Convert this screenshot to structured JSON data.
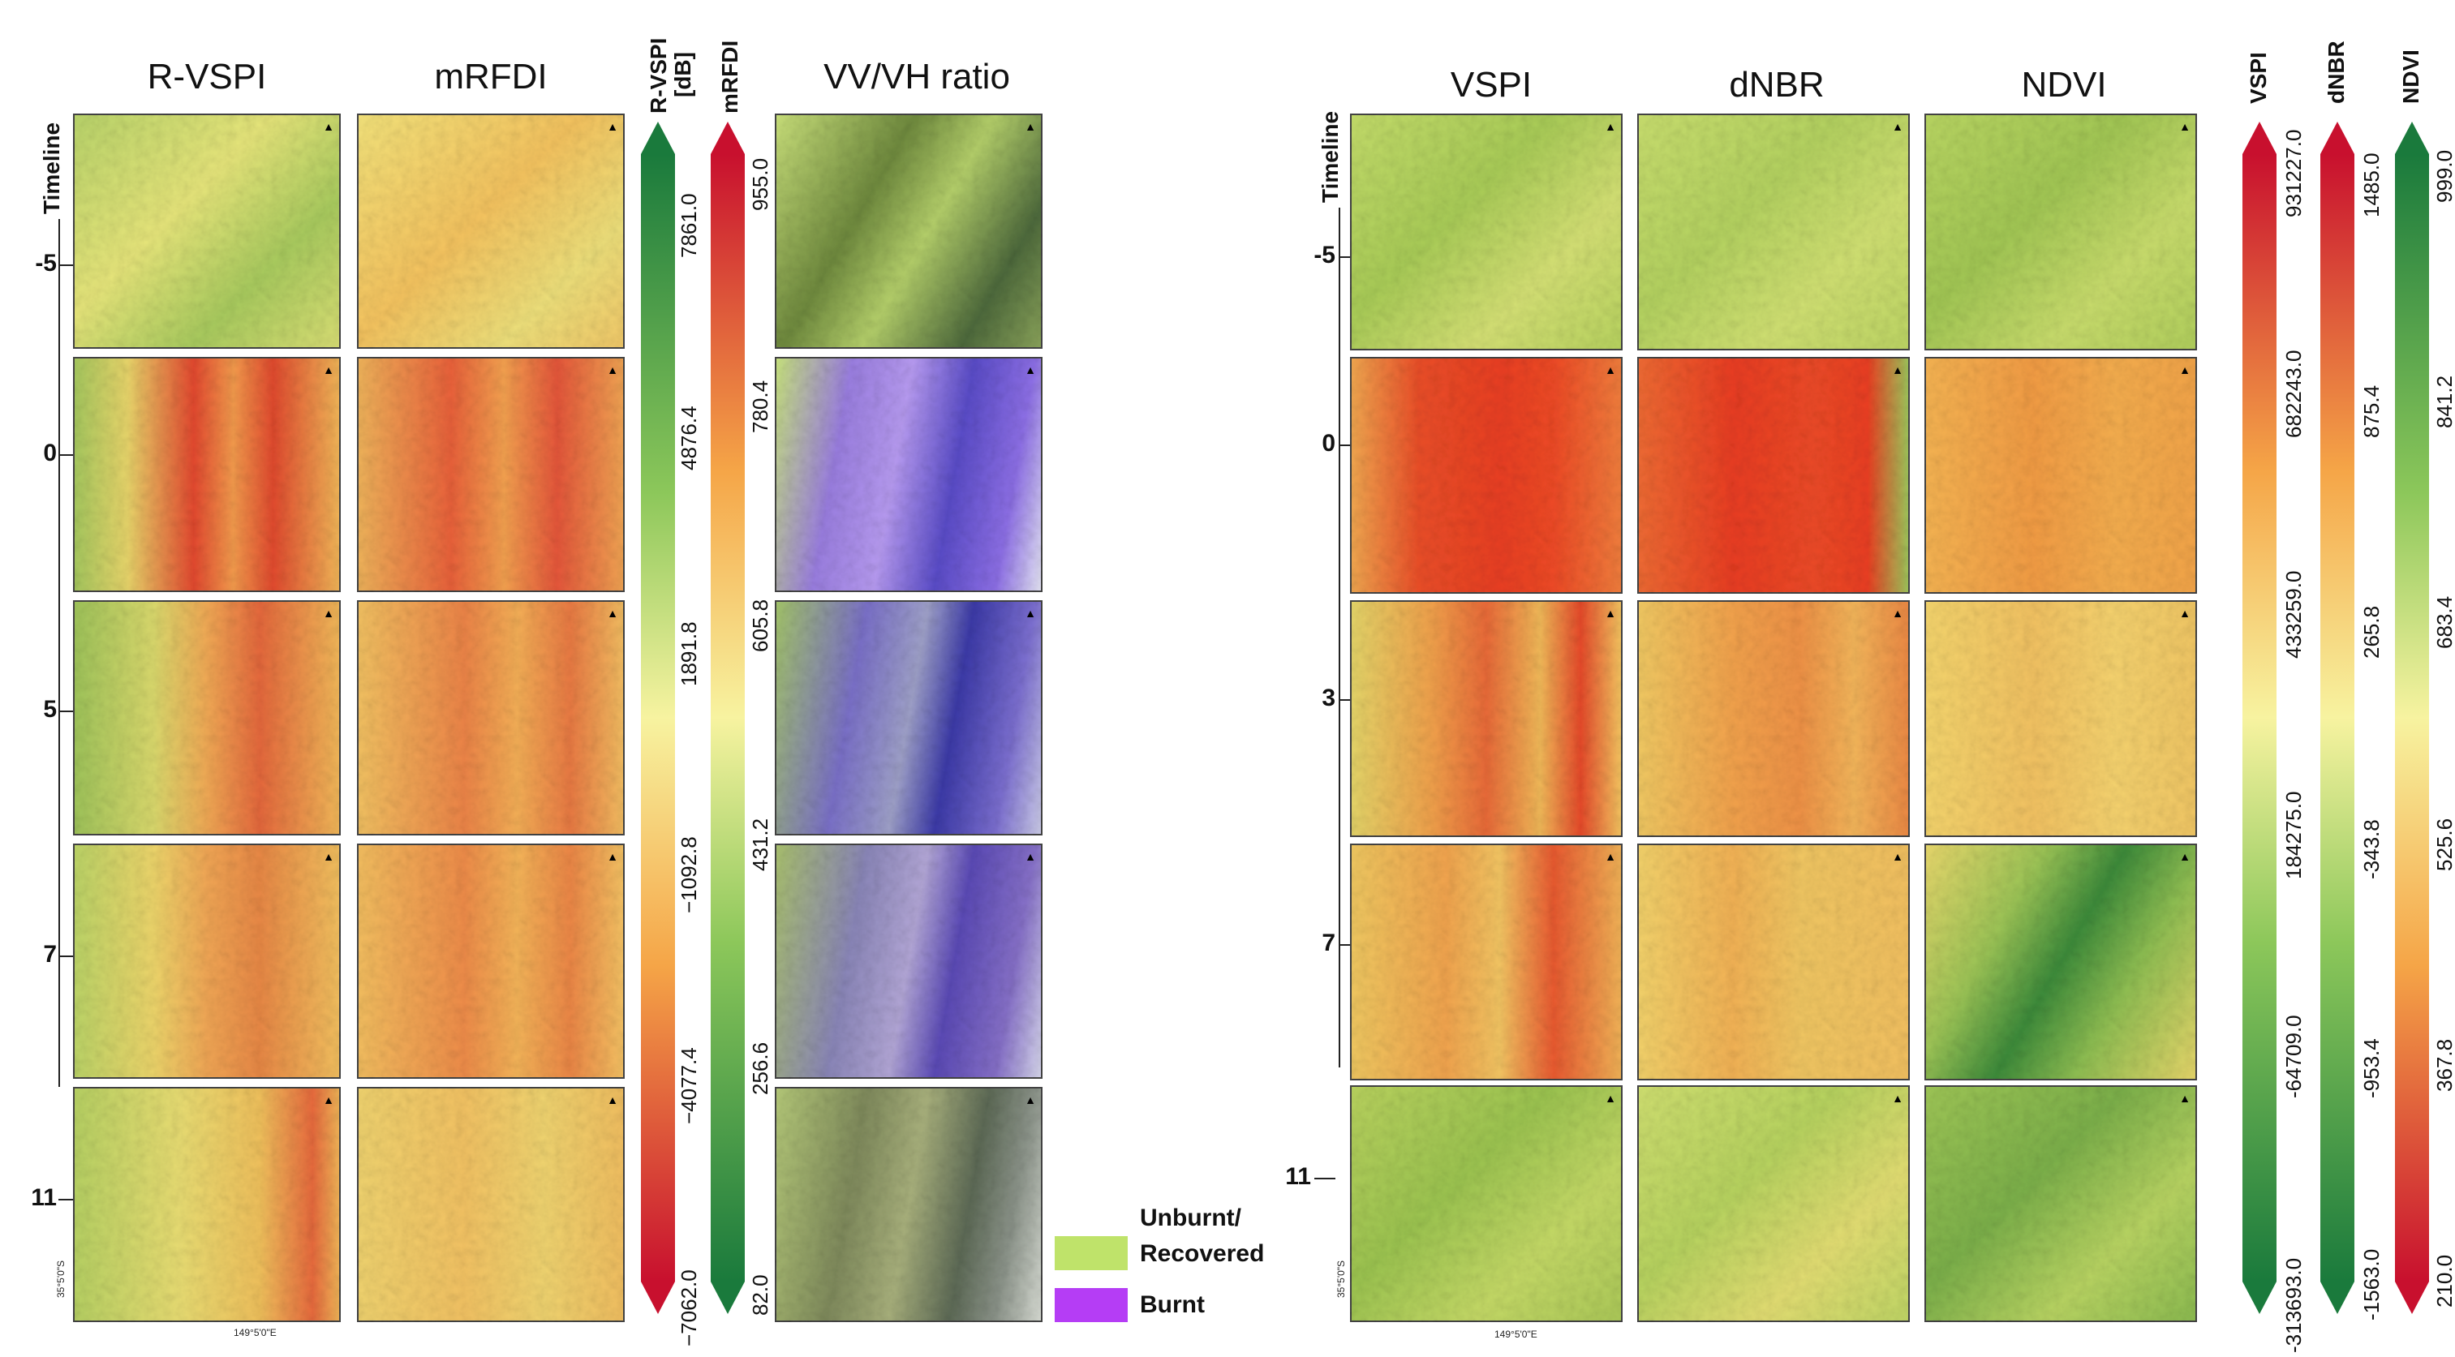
{
  "left_figure": {
    "headers": {
      "rvspi": "R-VSPI",
      "mrfdi": "mRFDI",
      "vvvh": "VV/VH ratio"
    },
    "timeline_label": "Timeline",
    "rows": [
      "-5",
      "0",
      "5",
      "7",
      "11"
    ],
    "colorbars": {
      "rvspi": {
        "title": "R-VSPI",
        "unit": "[dB]",
        "ticks": [
          "7861.0",
          "4876.4",
          "1891.8",
          "−1092.8",
          "−4077.4",
          "−7062.0"
        ]
      },
      "mrfdi": {
        "title": "mRFDI",
        "ticks": [
          "955.0",
          "780.4",
          "605.8",
          "431.2",
          "256.6",
          "82.0"
        ]
      }
    },
    "legend": {
      "unburnt": "Unburnt/ Recovered",
      "burnt": "Burnt"
    },
    "coords": {
      "lat": "35°5'0\"S",
      "lon": "149°5'0\"E"
    }
  },
  "right_figure": {
    "headers": {
      "vspi": "VSPI",
      "dnbr": "dNBR",
      "ndvi": "NDVI"
    },
    "timeline_label": "Timeline",
    "rows": [
      "-5",
      "0",
      "3",
      "7",
      "11"
    ],
    "colorbars": {
      "vspi": {
        "title": "VSPI",
        "ticks": [
          "931227.0",
          "682243.0",
          "433259.0",
          "184275.0",
          "-64709.0",
          "-313693.0"
        ]
      },
      "dnbr": {
        "title": "dNBR",
        "ticks": [
          "1485.0",
          "875.4",
          "265.8",
          "-343.8",
          "-953.4",
          "-1563.0"
        ]
      },
      "ndvi": {
        "title": "NDVI",
        "ticks": [
          "999.0",
          "841.2",
          "683.4",
          "525.6",
          "367.8",
          "210.0"
        ]
      }
    },
    "coords": {
      "lat": "35°5'0\"S",
      "lon": "149°5'0\"E"
    }
  },
  "colors": {
    "green": "#1a7a3c",
    "yellow": "#f7f3a0",
    "red": "#c8102e",
    "legend_green": "#bfe36a",
    "legend_purple": "#b53df5"
  }
}
